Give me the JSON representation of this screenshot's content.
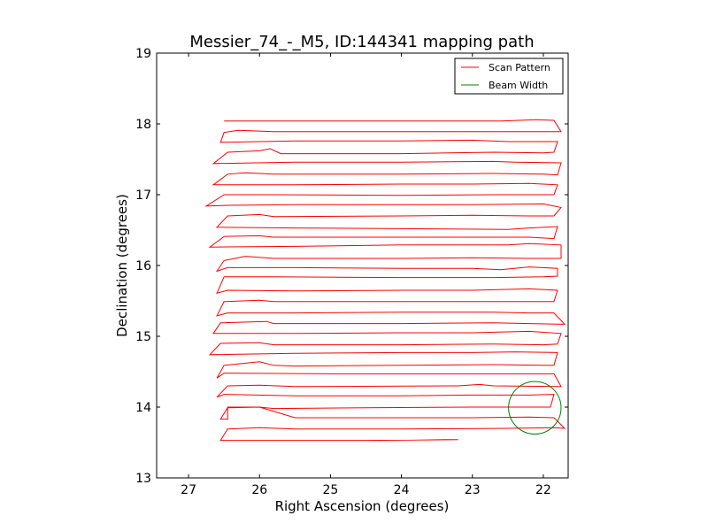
{
  "chart_data": {
    "type": "line",
    "title": "Messier_74_-_M5, ID:144341 mapping path",
    "xlabel": "Right Ascension (degrees)",
    "ylabel": "Declination (degrees)",
    "xlim": [
      27.45,
      21.65
    ],
    "ylim": [
      13,
      19
    ],
    "x_ticks": [
      27,
      26,
      25,
      24,
      23,
      22
    ],
    "x_tick_labels": [
      "27",
      "26",
      "25",
      "24",
      "23",
      "22"
    ],
    "y_ticks": [
      13,
      14,
      15,
      16,
      17,
      18,
      19
    ],
    "y_tick_labels": [
      "13",
      "14",
      "15",
      "16",
      "17",
      "18",
      "19"
    ],
    "legend": {
      "position": "top-right",
      "entries": [
        {
          "label": "Scan Pattern",
          "color": "#ff0000"
        },
        {
          "label": "Beam Width",
          "color": "#008000"
        }
      ]
    },
    "beam": {
      "center_ra": 22.12,
      "center_dec": 13.99,
      "radius_ra_deg": 0.37
    },
    "series": [
      {
        "name": "Scan Pattern",
        "color": "#ff0000",
        "points": [
          [
            26.55,
            13.53
          ],
          [
            24.8,
            13.53
          ],
          [
            24.0,
            13.53
          ],
          [
            23.4,
            13.54
          ],
          [
            23.2,
            13.54
          ],
          [
            23.2,
            13.54
          ],
          [
            24.5,
            13.53
          ],
          [
            26.55,
            13.53
          ],
          [
            26.45,
            13.69
          ],
          [
            26.0,
            13.71
          ],
          [
            25.5,
            13.69
          ],
          [
            24.0,
            13.69
          ],
          [
            22.5,
            13.7
          ],
          [
            21.85,
            13.71
          ],
          [
            21.7,
            13.7
          ],
          [
            21.85,
            13.85
          ],
          [
            22.2,
            13.86
          ],
          [
            23.0,
            13.85
          ],
          [
            24.0,
            13.85
          ],
          [
            25.5,
            13.85
          ],
          [
            26.0,
            14.0
          ],
          [
            26.45,
            13.99
          ],
          [
            26.55,
            13.83
          ],
          [
            26.45,
            13.83
          ],
          [
            26.45,
            14.0
          ],
          [
            26.0,
            14.0
          ],
          [
            25.8,
            13.98
          ],
          [
            24.5,
            13.99
          ],
          [
            23.0,
            14.0
          ],
          [
            21.9,
            14.0
          ],
          [
            21.85,
            14.18
          ],
          [
            22.2,
            14.17
          ],
          [
            22.7,
            14.17
          ],
          [
            23.0,
            14.17
          ],
          [
            24.0,
            14.16
          ],
          [
            25.5,
            14.16
          ],
          [
            26.5,
            14.18
          ],
          [
            26.6,
            14.14
          ],
          [
            26.45,
            14.3
          ],
          [
            26.0,
            14.31
          ],
          [
            25.5,
            14.29
          ],
          [
            23.2,
            14.3
          ],
          [
            22.9,
            14.32
          ],
          [
            22.7,
            14.3
          ],
          [
            21.75,
            14.29
          ],
          [
            21.85,
            14.47
          ],
          [
            22.5,
            14.47
          ],
          [
            23.0,
            14.47
          ],
          [
            25.0,
            14.47
          ],
          [
            26.5,
            14.48
          ],
          [
            26.6,
            14.41
          ],
          [
            26.5,
            14.59
          ],
          [
            26.0,
            14.64
          ],
          [
            25.8,
            14.59
          ],
          [
            25.5,
            14.58
          ],
          [
            24.0,
            14.59
          ],
          [
            22.7,
            14.6
          ],
          [
            22.0,
            14.59
          ],
          [
            21.85,
            14.59
          ],
          [
            21.8,
            14.77
          ],
          [
            22.4,
            14.78
          ],
          [
            23.0,
            14.77
          ],
          [
            24.0,
            14.77
          ],
          [
            25.5,
            14.76
          ],
          [
            26.7,
            14.74
          ],
          [
            26.55,
            14.9
          ],
          [
            26.0,
            14.91
          ],
          [
            25.8,
            14.88
          ],
          [
            24.0,
            14.88
          ],
          [
            22.7,
            14.89
          ],
          [
            22.0,
            14.88
          ],
          [
            21.8,
            14.89
          ],
          [
            21.75,
            15.04
          ],
          [
            22.2,
            15.07
          ],
          [
            23.0,
            15.05
          ],
          [
            24.0,
            15.05
          ],
          [
            25.5,
            15.04
          ],
          [
            26.65,
            15.04
          ],
          [
            26.55,
            15.19
          ],
          [
            25.9,
            15.21
          ],
          [
            25.8,
            15.18
          ],
          [
            24.0,
            15.18
          ],
          [
            22.7,
            15.19
          ],
          [
            22.2,
            15.18
          ],
          [
            21.7,
            15.17
          ],
          [
            21.85,
            15.33
          ],
          [
            22.2,
            15.33
          ],
          [
            22.7,
            15.34
          ],
          [
            24.0,
            15.34
          ],
          [
            25.5,
            15.33
          ],
          [
            26.45,
            15.33
          ],
          [
            26.6,
            15.29
          ],
          [
            26.5,
            15.49
          ],
          [
            26.0,
            15.51
          ],
          [
            25.8,
            15.49
          ],
          [
            24.0,
            15.49
          ],
          [
            22.7,
            15.49
          ],
          [
            22.0,
            15.49
          ],
          [
            21.85,
            15.49
          ],
          [
            21.8,
            15.65
          ],
          [
            22.2,
            15.67
          ],
          [
            23.0,
            15.65
          ],
          [
            24.0,
            15.65
          ],
          [
            25.5,
            15.64
          ],
          [
            26.45,
            15.65
          ],
          [
            26.6,
            15.61
          ],
          [
            26.5,
            15.84
          ],
          [
            25.85,
            15.84
          ],
          [
            25.8,
            15.84
          ],
          [
            24.0,
            15.83
          ],
          [
            22.7,
            15.83
          ],
          [
            22.0,
            15.84
          ],
          [
            21.8,
            15.85
          ],
          [
            21.8,
            15.96
          ],
          [
            22.2,
            15.98
          ],
          [
            22.6,
            15.94
          ],
          [
            23.0,
            15.96
          ],
          [
            24.0,
            15.96
          ],
          [
            25.5,
            15.97
          ],
          [
            26.45,
            15.97
          ],
          [
            26.6,
            15.92
          ],
          [
            26.5,
            16.07
          ],
          [
            26.2,
            16.13
          ],
          [
            25.8,
            16.1
          ],
          [
            24.0,
            16.1
          ],
          [
            23.0,
            16.11
          ],
          [
            22.2,
            16.1
          ],
          [
            21.75,
            16.1
          ],
          [
            21.75,
            16.29
          ],
          [
            22.2,
            16.31
          ],
          [
            22.5,
            16.29
          ],
          [
            24.0,
            16.29
          ],
          [
            25.5,
            16.27
          ],
          [
            26.7,
            16.26
          ],
          [
            26.5,
            16.41
          ],
          [
            26.0,
            16.42
          ],
          [
            25.8,
            16.4
          ],
          [
            24.0,
            16.4
          ],
          [
            22.7,
            16.4
          ],
          [
            22.2,
            16.4
          ],
          [
            21.85,
            16.38
          ],
          [
            21.8,
            16.55
          ],
          [
            22.2,
            16.53
          ],
          [
            22.5,
            16.51
          ],
          [
            24.0,
            16.52
          ],
          [
            25.5,
            16.53
          ],
          [
            26.6,
            16.54
          ],
          [
            26.45,
            16.7
          ],
          [
            26.0,
            16.72
          ],
          [
            25.8,
            16.69
          ],
          [
            24.0,
            16.7
          ],
          [
            23.0,
            16.71
          ],
          [
            22.2,
            16.7
          ],
          [
            21.85,
            16.7
          ],
          [
            21.75,
            16.82
          ],
          [
            22.0,
            16.87
          ],
          [
            23.0,
            16.86
          ],
          [
            24.0,
            16.86
          ],
          [
            25.5,
            16.86
          ],
          [
            26.45,
            16.85
          ],
          [
            26.75,
            16.84
          ],
          [
            26.5,
            17.0
          ],
          [
            25.8,
            17.0
          ],
          [
            24.0,
            16.99
          ],
          [
            22.7,
            17.0
          ],
          [
            21.85,
            17.0
          ],
          [
            21.8,
            17.14
          ],
          [
            22.2,
            17.16
          ],
          [
            23.0,
            17.15
          ],
          [
            24.0,
            17.15
          ],
          [
            25.5,
            17.14
          ],
          [
            26.65,
            17.14
          ],
          [
            26.45,
            17.29
          ],
          [
            26.2,
            17.31
          ],
          [
            25.8,
            17.29
          ],
          [
            24.0,
            17.29
          ],
          [
            22.7,
            17.3
          ],
          [
            22.0,
            17.29
          ],
          [
            21.8,
            17.28
          ],
          [
            21.75,
            17.45
          ],
          [
            22.4,
            17.46
          ],
          [
            22.7,
            17.47
          ],
          [
            24.0,
            17.46
          ],
          [
            25.5,
            17.46
          ],
          [
            26.65,
            17.44
          ],
          [
            26.45,
            17.6
          ],
          [
            26.0,
            17.62
          ],
          [
            25.85,
            17.65
          ],
          [
            25.7,
            17.58
          ],
          [
            24.0,
            17.58
          ],
          [
            22.7,
            17.6
          ],
          [
            22.0,
            17.59
          ],
          [
            21.85,
            17.6
          ],
          [
            21.8,
            17.75
          ],
          [
            22.5,
            17.75
          ],
          [
            23.0,
            17.77
          ],
          [
            24.0,
            17.76
          ],
          [
            25.5,
            17.76
          ],
          [
            26.55,
            17.74
          ],
          [
            26.5,
            17.88
          ],
          [
            26.3,
            17.91
          ],
          [
            25.8,
            17.89
          ],
          [
            24.0,
            17.89
          ],
          [
            22.7,
            17.89
          ],
          [
            22.0,
            17.89
          ],
          [
            21.75,
            17.89
          ],
          [
            21.85,
            18.05
          ],
          [
            22.1,
            18.06
          ],
          [
            22.6,
            18.04
          ],
          [
            24.0,
            18.04
          ],
          [
            25.5,
            18.04
          ],
          [
            26.5,
            18.04
          ]
        ]
      }
    ]
  }
}
